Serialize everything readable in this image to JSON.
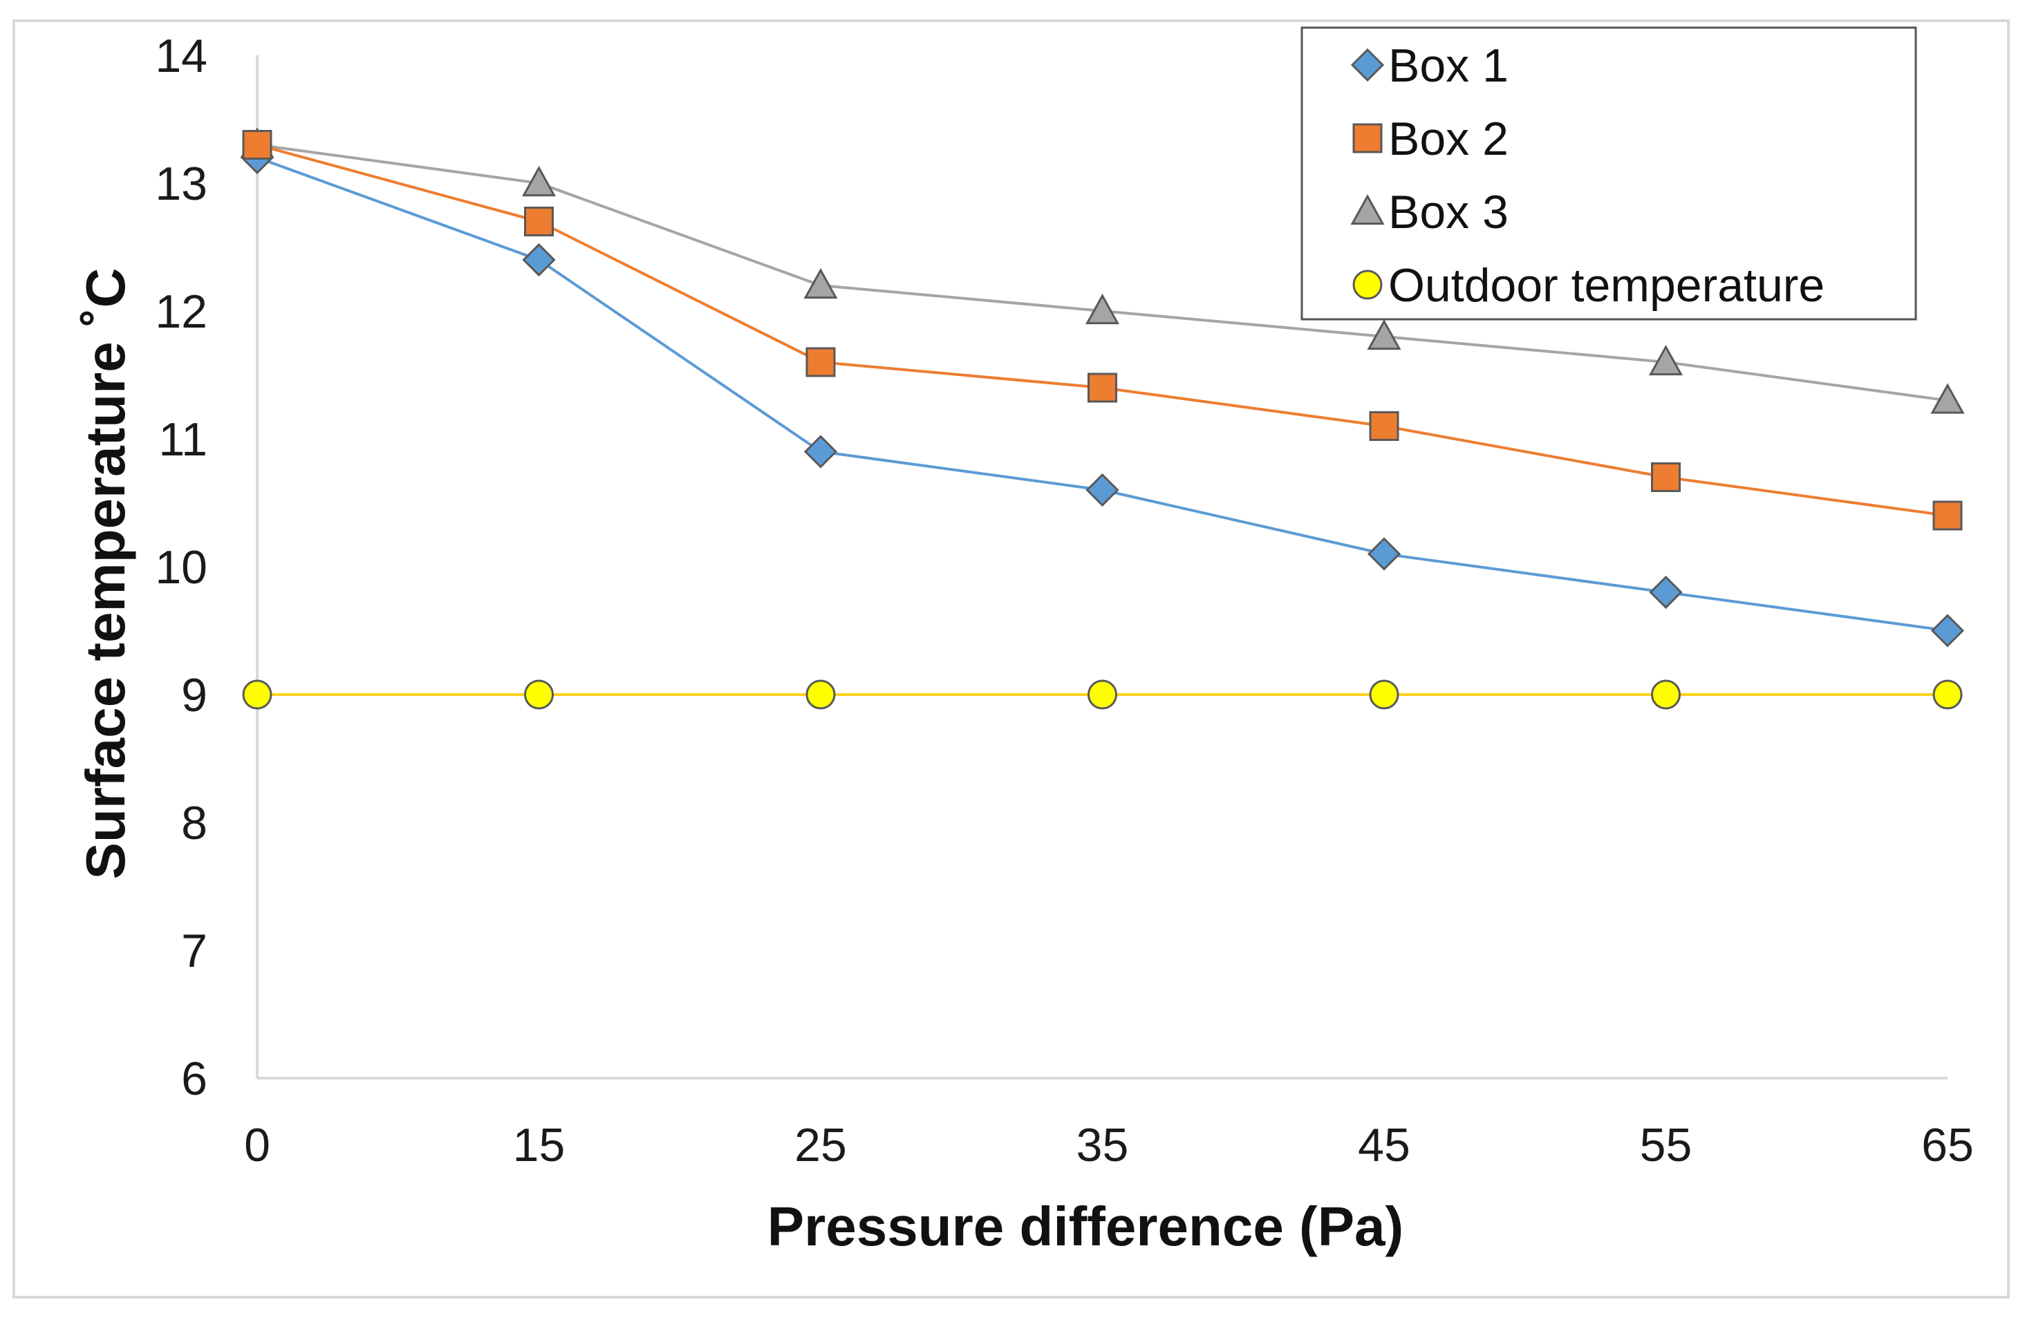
{
  "chart_data": {
    "type": "line",
    "x": [
      0,
      15,
      25,
      35,
      45,
      55,
      65
    ],
    "xlabel": "Pressure difference (Pa)",
    "ylabel": "Surface temperature ˚C",
    "ylim": [
      6,
      14
    ],
    "yticks": [
      6,
      7,
      8,
      9,
      10,
      11,
      12,
      13,
      14
    ],
    "grid": false,
    "legend_position": "top-right",
    "series": [
      {
        "name": "Box 1",
        "marker": "diamond",
        "color": "#5b9bd5",
        "values": [
          13.2,
          12.4,
          10.9,
          10.6,
          10.1,
          9.8,
          9.5
        ]
      },
      {
        "name": "Box 2",
        "marker": "square",
        "color": "#ed7d31",
        "values": [
          13.3,
          12.7,
          11.6,
          11.4,
          11.1,
          10.7,
          10.4
        ]
      },
      {
        "name": "Box 3",
        "marker": "triangle",
        "color": "#a5a5a5",
        "values": [
          13.3,
          13.0,
          12.2,
          12.0,
          11.8,
          11.6,
          11.3
        ]
      },
      {
        "name": "Outdoor temperature",
        "marker": "circle",
        "color": "#ffff00",
        "line_color": "#ffd21a",
        "values": [
          9,
          9,
          9,
          9,
          9,
          9,
          9
        ]
      }
    ]
  }
}
